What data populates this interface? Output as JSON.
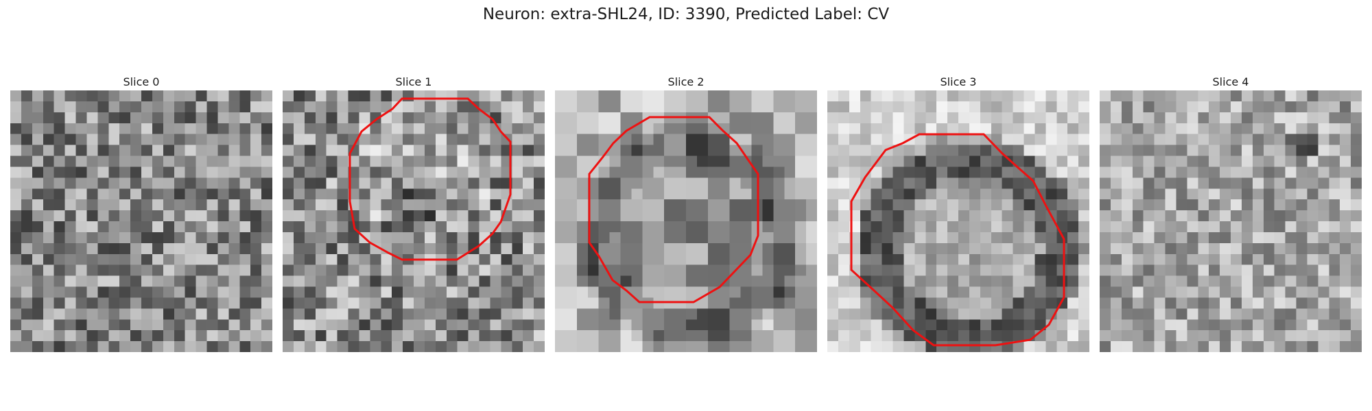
{
  "title": "Neuron: extra-SHL24, ID: 3390, Predicted Label: CV",
  "overlay_color": "#ee1111",
  "slices": [
    {
      "label": "Slice 0",
      "has_contour": false
    },
    {
      "label": "Slice 1",
      "has_contour": true
    },
    {
      "label": "Slice 2",
      "has_contour": true
    },
    {
      "label": "Slice 3",
      "has_contour": true
    },
    {
      "label": "Slice 4",
      "has_contour": false
    }
  ]
}
